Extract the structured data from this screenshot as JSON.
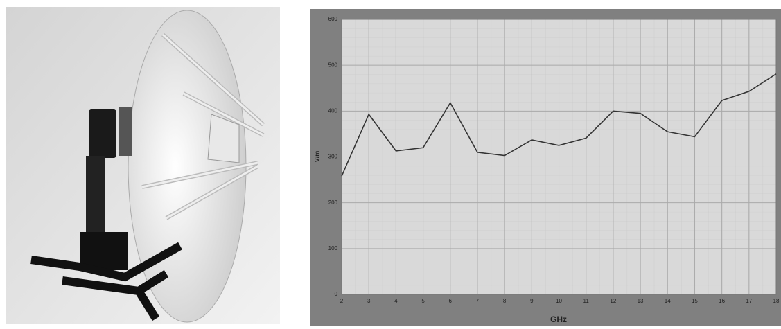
{
  "chart_data": {
    "type": "line",
    "x_label": "GHz",
    "y_label": "V/m",
    "x": [
      2,
      3,
      4,
      5,
      6,
      7,
      8,
      9,
      10,
      11,
      12,
      13,
      14,
      15,
      16,
      17,
      18
    ],
    "series": [
      {
        "color": "#333333",
        "values": [
          258,
          393,
          313,
          320,
          418,
          310,
          303,
          337,
          325,
          341,
          400,
          395,
          355,
          344,
          423,
          443,
          481
        ]
      }
    ],
    "xlim": [
      2,
      18
    ],
    "xticks": [
      2,
      3,
      4,
      5,
      6,
      7,
      8,
      9,
      10,
      11,
      12,
      13,
      14,
      15,
      16,
      17,
      18
    ],
    "ylim": [
      0,
      600
    ],
    "yticks": [
      0,
      100,
      200,
      300,
      400,
      500,
      600
    ],
    "grid": true
  }
}
